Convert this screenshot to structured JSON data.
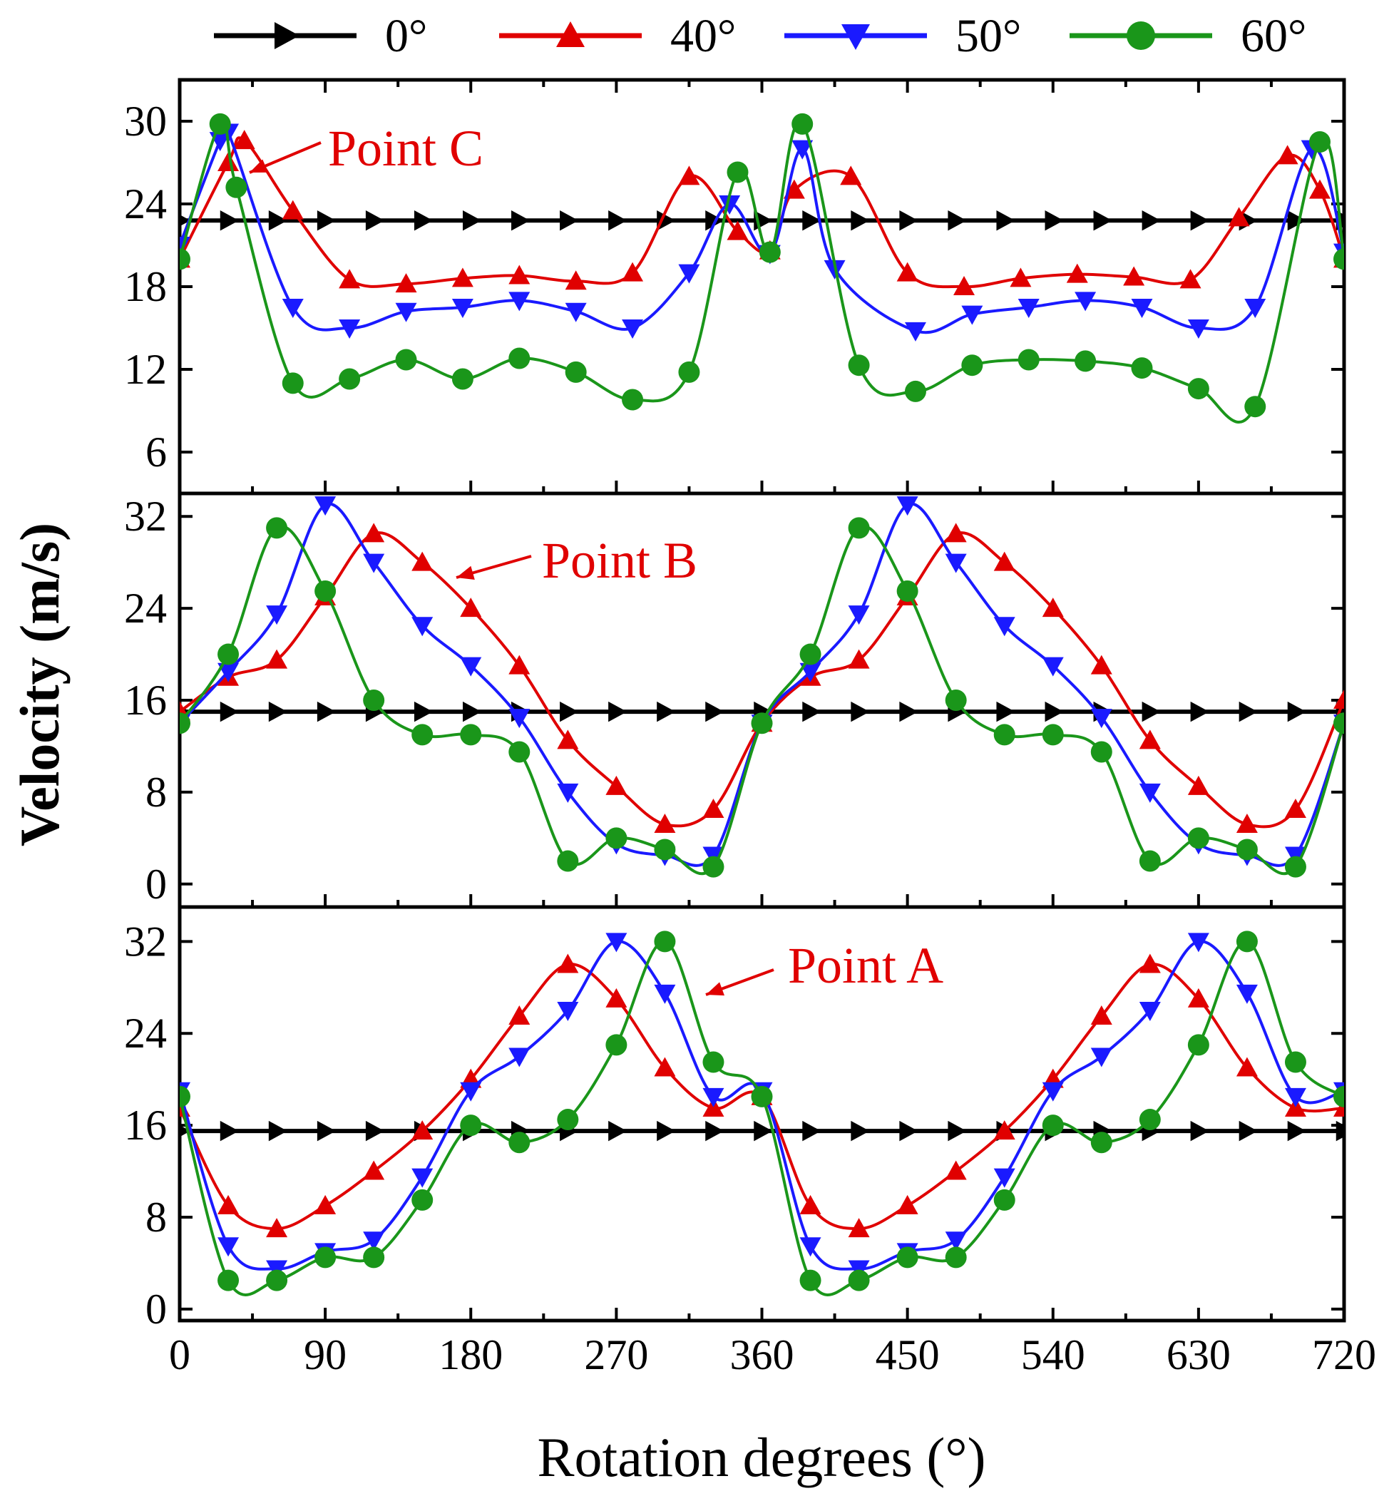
{
  "chart_data": [
    {
      "type": "line",
      "panel": "top",
      "annotation": "Point C",
      "annotation_color": "#e00000",
      "ylim": [
        3,
        33
      ],
      "yticks": [
        6,
        12,
        18,
        24,
        30
      ],
      "x": [
        0,
        30,
        60,
        90,
        120,
        150,
        180,
        210,
        240,
        270,
        300,
        330,
        360,
        390,
        420,
        450,
        480,
        510,
        540,
        570,
        600,
        630,
        660,
        690,
        720
      ],
      "series": [
        {
          "name": "0°",
          "color": "#000000",
          "marker": "triangle-right",
          "values": [
            22.8,
            22.8,
            22.8,
            22.8,
            22.8,
            22.8,
            22.8,
            22.8,
            22.8,
            22.8,
            22.8,
            22.8,
            22.8,
            22.8,
            22.8,
            22.8,
            22.8,
            22.8,
            22.8,
            22.8,
            22.8,
            22.8,
            22.8,
            22.8,
            22.8
          ]
        },
        {
          "name": "40°",
          "color": "#e00000",
          "marker": "triangle-up",
          "x": [
            0,
            30,
            40,
            70,
            105,
            140,
            175,
            210,
            245,
            280,
            315,
            345,
            365,
            380,
            415,
            450,
            485,
            520,
            555,
            590,
            625,
            655,
            685,
            705,
            720
          ],
          "values": [
            20,
            27,
            28.6,
            23.5,
            18.5,
            18.2,
            18.6,
            18.8,
            18.4,
            19,
            26,
            22,
            20.6,
            25,
            26,
            19,
            18,
            18.6,
            18.9,
            18.7,
            18.5,
            23,
            27.5,
            25,
            20
          ]
        },
        {
          "name": "50°",
          "color": "#1a1aff",
          "marker": "triangle-down",
          "x": [
            0,
            25,
            30,
            70,
            105,
            140,
            175,
            210,
            245,
            280,
            315,
            340,
            365,
            385,
            405,
            455,
            490,
            525,
            560,
            595,
            630,
            665,
            700,
            720
          ],
          "values": [
            21,
            28.6,
            29.2,
            16.5,
            15,
            16.2,
            16.5,
            17,
            16.2,
            15,
            19,
            24,
            20.4,
            28,
            19.3,
            14.8,
            16,
            16.5,
            17,
            16.5,
            15,
            16.5,
            28,
            20.5
          ]
        },
        {
          "name": "60°",
          "color": "#1a961a",
          "marker": "circle",
          "x": [
            0,
            25,
            35,
            70,
            105,
            140,
            175,
            210,
            245,
            280,
            315,
            345,
            365,
            385,
            420,
            455,
            490,
            525,
            560,
            595,
            630,
            665,
            705,
            720
          ],
          "values": [
            20,
            29.8,
            25.2,
            11,
            11.3,
            12.7,
            11.3,
            12.8,
            11.8,
            9.8,
            11.8,
            26.3,
            20.5,
            29.8,
            12.3,
            10.4,
            12.3,
            12.7,
            12.6,
            12.1,
            10.6,
            9.3,
            28.5,
            20
          ]
        }
      ]
    },
    {
      "type": "line",
      "panel": "middle",
      "annotation": "Point B",
      "annotation_color": "#e00000",
      "ylim": [
        -2,
        34
      ],
      "yticks": [
        0,
        8,
        16,
        24,
        32
      ],
      "x": [
        0,
        30,
        60,
        90,
        120,
        150,
        180,
        210,
        240,
        270,
        300,
        330,
        360,
        390,
        420,
        450,
        480,
        510,
        540,
        570,
        600,
        630,
        660,
        690,
        720
      ],
      "series": [
        {
          "name": "0°",
          "color": "#000000",
          "marker": "triangle-right",
          "values": [
            15,
            15,
            15,
            15,
            15,
            15,
            15,
            15,
            15,
            15,
            15,
            15,
            15,
            15,
            15,
            15,
            15,
            15,
            15,
            15,
            15,
            15,
            15,
            15,
            15
          ]
        },
        {
          "name": "40°",
          "color": "#e00000",
          "marker": "triangle-up",
          "x": [
            0,
            30,
            60,
            90,
            120,
            150,
            180,
            210,
            240,
            270,
            300,
            330,
            360,
            390,
            420,
            450,
            480,
            510,
            540,
            570,
            600,
            630,
            660,
            690,
            720
          ],
          "values": [
            15,
            18,
            19.5,
            25,
            30.5,
            28,
            24,
            19,
            12.5,
            8.5,
            5.2,
            6.5,
            14,
            18,
            19.5,
            25,
            30.5,
            28,
            24,
            19,
            12.5,
            8.5,
            5.2,
            6.5,
            16
          ]
        },
        {
          "name": "50°",
          "color": "#1a1aff",
          "marker": "triangle-down",
          "x": [
            0,
            30,
            60,
            90,
            120,
            150,
            180,
            210,
            240,
            270,
            300,
            330,
            360,
            390,
            420,
            450,
            480,
            510,
            540,
            570,
            600,
            630,
            660,
            690,
            720
          ],
          "values": [
            14,
            18.5,
            23.5,
            33,
            28,
            22.5,
            19,
            14.5,
            8,
            3.5,
            2.5,
            2.5,
            14,
            18.5,
            23.5,
            33,
            28,
            22.5,
            19,
            14.5,
            8,
            3.5,
            2.5,
            2.5,
            14
          ]
        },
        {
          "name": "60°",
          "color": "#1a961a",
          "marker": "circle",
          "x": [
            0,
            30,
            60,
            90,
            120,
            150,
            180,
            210,
            240,
            270,
            300,
            330,
            360,
            390,
            420,
            450,
            480,
            510,
            540,
            570,
            600,
            630,
            660,
            690,
            720
          ],
          "values": [
            14,
            20,
            31,
            25.5,
            16,
            13,
            13,
            11.5,
            2,
            4,
            3,
            1.5,
            14,
            20,
            31,
            25.5,
            16,
            13,
            13,
            11.5,
            2,
            4,
            3,
            1.5,
            14
          ]
        }
      ]
    },
    {
      "type": "line",
      "panel": "bottom",
      "annotation": "Point A",
      "annotation_color": "#e00000",
      "ylim": [
        -1,
        35
      ],
      "yticks": [
        0,
        8,
        16,
        24,
        32
      ],
      "xlabel": "Rotation degrees (°)",
      "xlim": [
        0,
        720
      ],
      "xticks": [
        0,
        90,
        180,
        270,
        360,
        450,
        540,
        630,
        720
      ],
      "x": [
        0,
        30,
        60,
        90,
        120,
        150,
        180,
        210,
        240,
        270,
        300,
        330,
        360,
        390,
        420,
        450,
        480,
        510,
        540,
        570,
        600,
        630,
        660,
        690,
        720
      ],
      "series": [
        {
          "name": "0°",
          "color": "#000000",
          "marker": "triangle-right",
          "values": [
            15.5,
            15.5,
            15.5,
            15.5,
            15.5,
            15.5,
            15.5,
            15.5,
            15.5,
            15.5,
            15.5,
            15.5,
            15.5,
            15.5,
            15.5,
            15.5,
            15.5,
            15.5,
            15.5,
            15.5,
            15.5,
            15.5,
            15.5,
            15.5,
            15.5
          ]
        },
        {
          "name": "40°",
          "color": "#e00000",
          "marker": "triangle-up",
          "values": [
            17.5,
            9,
            7,
            9,
            12,
            15.5,
            20,
            25.5,
            30,
            27,
            21,
            17.5,
            18.5,
            9,
            7,
            9,
            12,
            15.5,
            20,
            25.5,
            30,
            27,
            21,
            17.5,
            17.5
          ]
        },
        {
          "name": "50°",
          "color": "#1a1aff",
          "marker": "triangle-down",
          "values": [
            19,
            5.5,
            3.5,
            5,
            6,
            11.5,
            19,
            22,
            26,
            32,
            27.5,
            18.5,
            19,
            5.5,
            3.5,
            5,
            6,
            11.5,
            19,
            22,
            26,
            32,
            27.5,
            18.5,
            19
          ]
        },
        {
          "name": "60°",
          "color": "#1a961a",
          "marker": "circle",
          "values": [
            18.5,
            2.5,
            2.5,
            4.5,
            4.5,
            9.5,
            16,
            14.5,
            16.5,
            23,
            32,
            21.5,
            18.5,
            2.5,
            2.5,
            4.5,
            4.5,
            9.5,
            16,
            14.5,
            16.5,
            23,
            32,
            21.5,
            18.5
          ]
        }
      ]
    }
  ],
  "shared": {
    "ylabel": "Velocity (m/s)",
    "legend_position": "top",
    "legend": [
      {
        "label": "0°",
        "color": "#000000",
        "marker": "triangle-right"
      },
      {
        "label": "40°",
        "color": "#e00000",
        "marker": "triangle-up"
      },
      {
        "label": "50°",
        "color": "#1a1aff",
        "marker": "triangle-down"
      },
      {
        "label": "60°",
        "color": "#1a961a",
        "marker": "circle"
      }
    ]
  }
}
